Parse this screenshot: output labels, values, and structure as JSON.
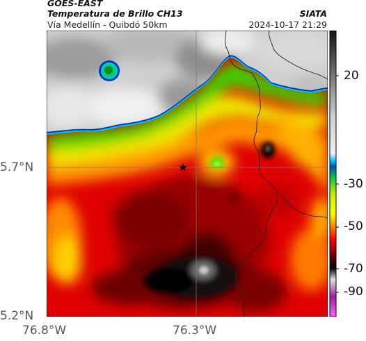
{
  "header": {
    "satellite": "GOES-EAST",
    "product": "Temperatura de Brillo CH13",
    "region": "Vía Medellín - Quibdó 50km",
    "agency": "SIATA",
    "datetime": "2024-10-17 21:29"
  },
  "axes": {
    "y_ticks": [
      "5.7°N",
      "5.2°N"
    ],
    "x_ticks": [
      "76.8°W",
      "76.3°W"
    ]
  },
  "colorbar": {
    "labels": [
      "20",
      "-30",
      "-50",
      "-70",
      "-90"
    ],
    "stops": [
      {
        "value": 35,
        "color": "#151515"
      },
      {
        "value": 20,
        "color": "#6a6a6a"
      },
      {
        "value": 5,
        "color": "#cfcfcf"
      },
      {
        "value": -18,
        "color": "#f0f0f0"
      },
      {
        "value": -24,
        "color": "#00c8ff"
      },
      {
        "value": -26,
        "color": "#0050c0"
      },
      {
        "value": -30,
        "color": "#00d070"
      },
      {
        "value": -40,
        "color": "#d0f000"
      },
      {
        "value": -50,
        "color": "#ffff00"
      },
      {
        "value": -55,
        "color": "#ff9000"
      },
      {
        "value": -62,
        "color": "#ff0000"
      },
      {
        "value": -68,
        "color": "#7a0000"
      },
      {
        "value": -73,
        "color": "#000000"
      },
      {
        "value": -78,
        "color": "#e0e0e0"
      },
      {
        "value": -85,
        "color": "#a020a0"
      },
      {
        "value": -92,
        "color": "#ff60ff"
      }
    ]
  },
  "map": {
    "gridline_color": "#7a7a7a",
    "marker": "star",
    "border_color": "#222222"
  }
}
